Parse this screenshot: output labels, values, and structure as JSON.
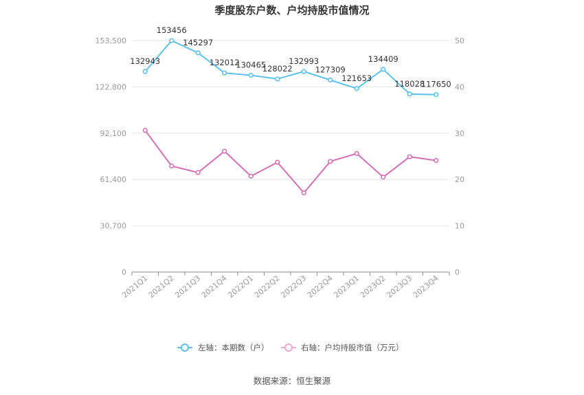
{
  "chart_data": {
    "type": "line",
    "title": "季度股东户数、户均持股市值情况",
    "categories": [
      "2021Q1",
      "2021Q2",
      "2021Q3",
      "2021Q4",
      "2022Q1",
      "2022Q2",
      "2022Q3",
      "2022Q4",
      "2023Q1",
      "2023Q2",
      "2023Q3",
      "2023Q4"
    ],
    "y_left": {
      "ticks": [
        "0",
        "30,700",
        "61,400",
        "92,100",
        "122,800",
        "153,500"
      ],
      "ylim": [
        0,
        153500
      ]
    },
    "y_right": {
      "ticks": [
        "0",
        "10",
        "20",
        "30",
        "40",
        "50"
      ],
      "ylim": [
        0,
        50
      ]
    },
    "series": [
      {
        "name": "左轴：本期数（户）",
        "axis": "left",
        "color": "#5bc0eb",
        "values": [
          132943,
          153456,
          145297,
          132012,
          130465,
          128022,
          132993,
          127309,
          121653,
          134409,
          118028,
          117650
        ],
        "labels": [
          "132943",
          "153456",
          "145297",
          "132012",
          "130465",
          "128022",
          "132993",
          "127309",
          "121653",
          "134409",
          "118028",
          "117650"
        ]
      },
      {
        "name": "右轴：户均持股市值（万元）",
        "axis": "right",
        "color": "#d36fb5",
        "values": [
          30.6,
          22.9,
          21.5,
          26.1,
          20.7,
          23.7,
          17.1,
          23.9,
          25.6,
          20.5,
          24.9,
          24.1
        ]
      }
    ],
    "grid": true,
    "legend": "bottom"
  },
  "source_label": "数据来源：恒生聚源"
}
